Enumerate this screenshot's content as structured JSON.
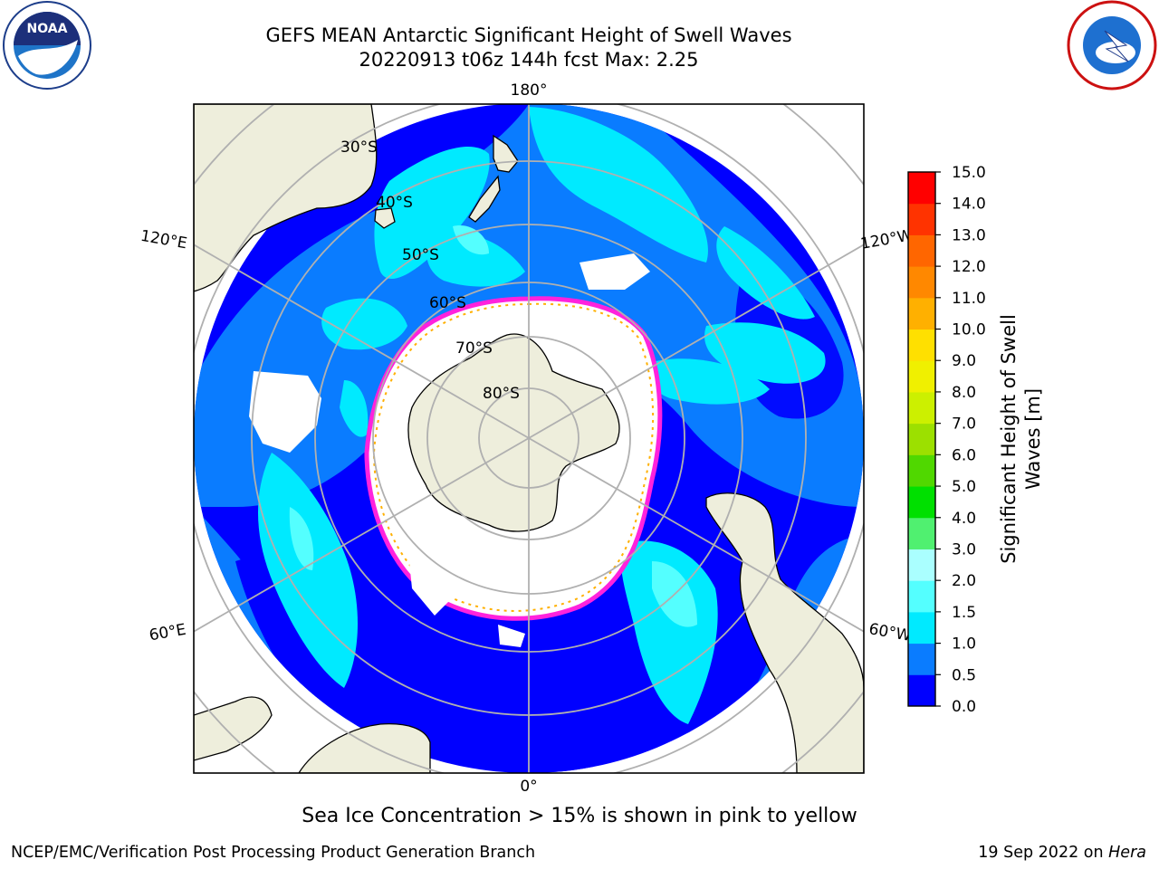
{
  "header": {
    "title_line1": "GEFS MEAN Antarctic Significant Height of Swell Waves",
    "title_line2": "20220913 t06z 144h fcst   Max: 2.25"
  },
  "logos": {
    "left": "noaa-logo",
    "right": "national-weather-service-logo"
  },
  "map": {
    "projection": "south-polar-stereographic",
    "longitude_labels": {
      "top": "180°",
      "bottom": "0°",
      "left_upper": "120°E",
      "left_lower": "60°E",
      "right_upper": "120°W",
      "right_lower": "60°W"
    },
    "latitude_labels": [
      "30°S",
      "40°S",
      "50°S",
      "60°S",
      "70°S",
      "80°S"
    ],
    "colors": {
      "land": "#eeeedc",
      "ice_edge": "#ff22dd",
      "ice_edge_inner": "#ffb000",
      "grid": "#b0b0b0"
    }
  },
  "colorbar": {
    "label_line1": "Significant Height of Swell",
    "label_line2": "Waves [m]",
    "ticks": [
      "0.0",
      "0.5",
      "1.0",
      "1.5",
      "2.0",
      "3.0",
      "4.0",
      "5.0",
      "6.0",
      "7.0",
      "8.0",
      "9.0",
      "10.0",
      "11.0",
      "12.0",
      "13.0",
      "14.0",
      "15.0"
    ],
    "colors": [
      "#0000ff",
      "#0a7cff",
      "#00eaff",
      "#54ffff",
      "#aaffff",
      "#50f070",
      "#00e000",
      "#50d800",
      "#9ce000",
      "#ccf000",
      "#f0f000",
      "#ffe000",
      "#ffb000",
      "#ff8800",
      "#ff6600",
      "#ff3300",
      "#ff0000"
    ]
  },
  "footer": {
    "note": "Sea Ice Concentration > 15% is shown in pink to yellow",
    "left": "NCEP/EMC/Verification Post Processing Product Generation Branch",
    "right_date": "19 Sep 2022 on ",
    "right_machine": "Hera"
  }
}
